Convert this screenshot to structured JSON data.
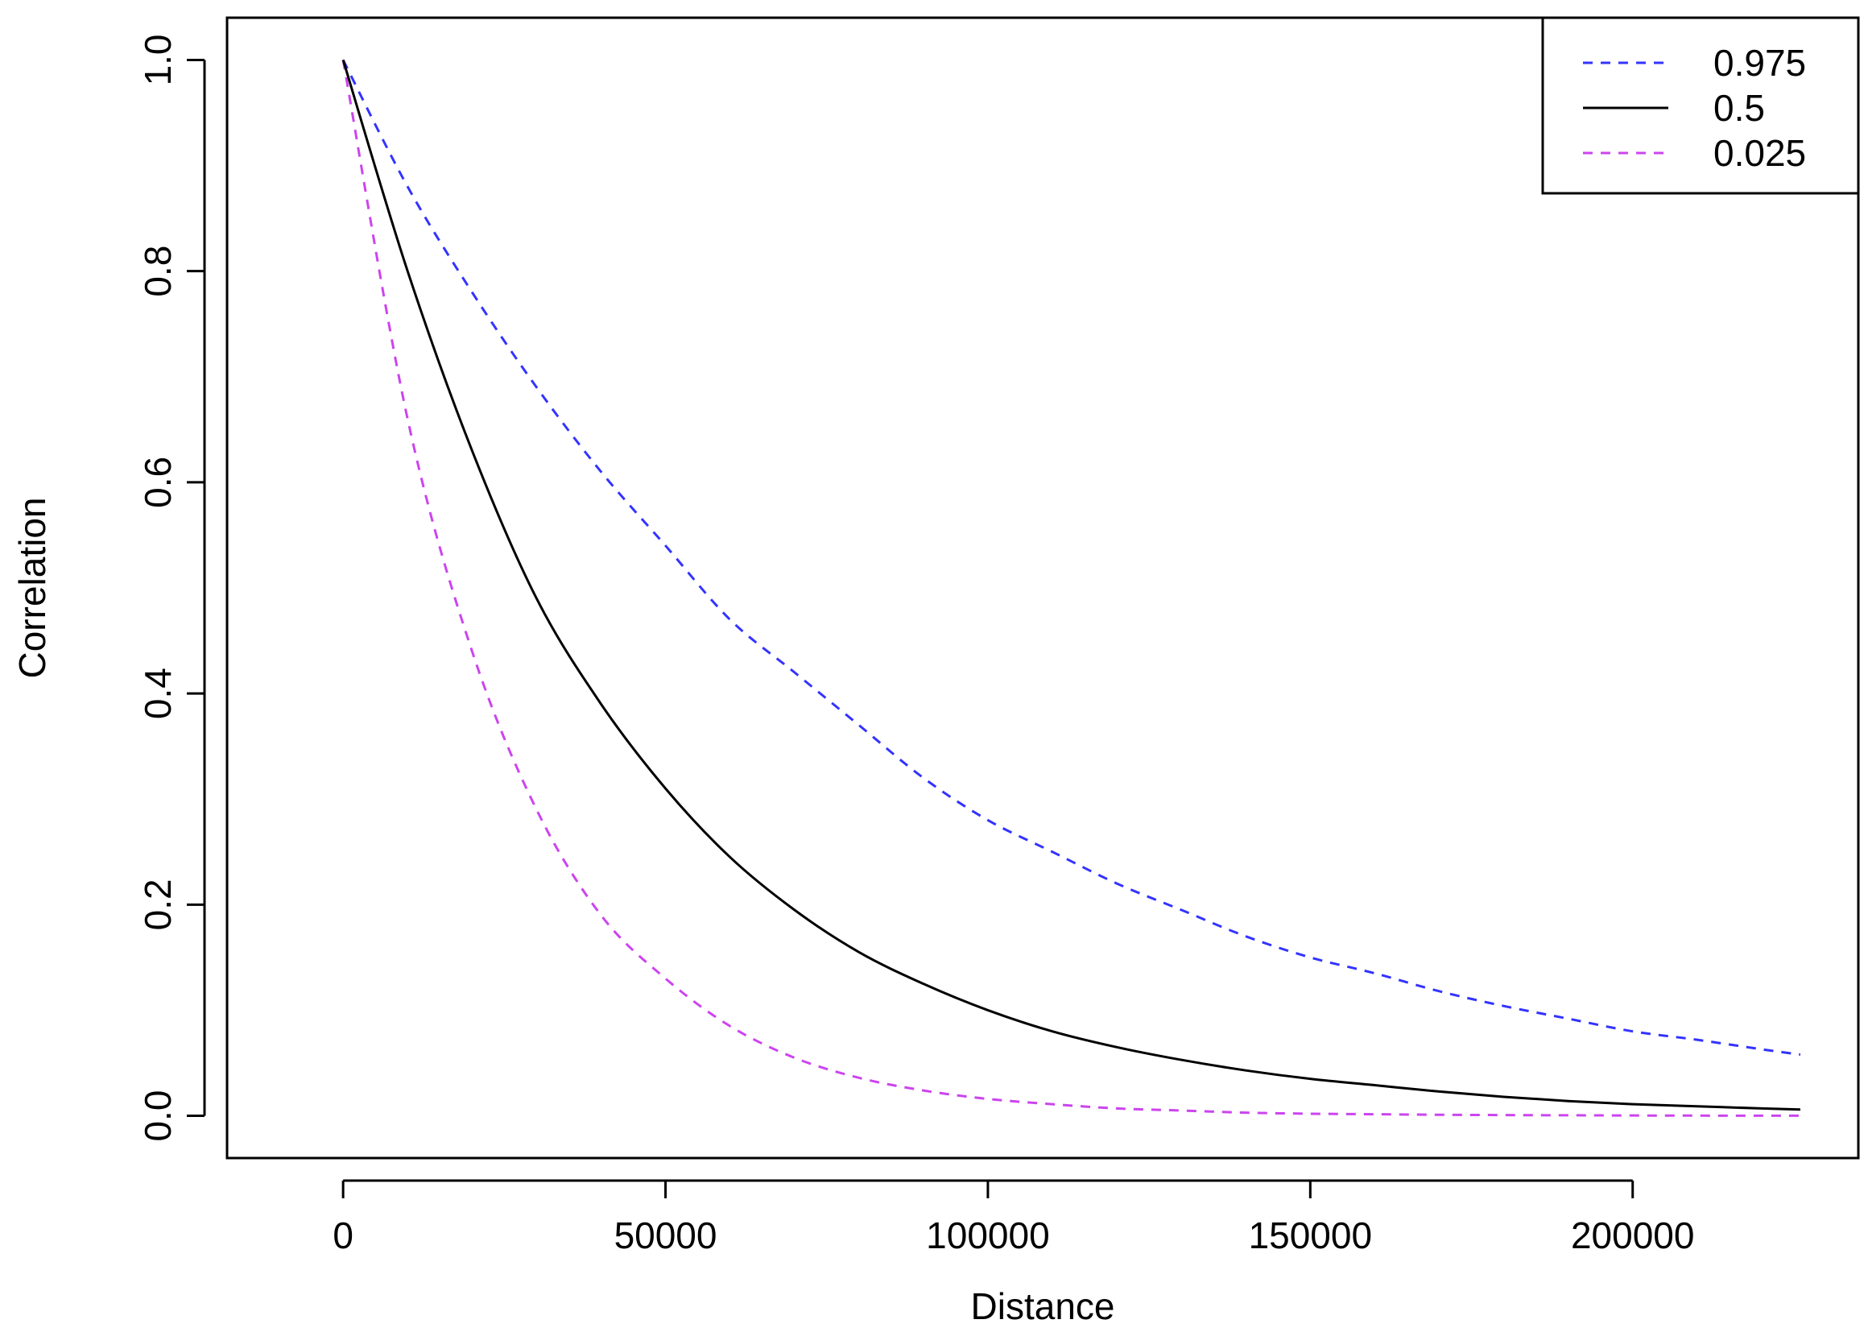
{
  "chart_data": {
    "type": "line",
    "title": "",
    "xlabel": "Distance",
    "ylabel": "Correlation",
    "xlim": [
      -18000,
      235000
    ],
    "ylim": [
      -0.04,
      1.04
    ],
    "x_ticks": [
      0,
      50000,
      100000,
      150000,
      200000
    ],
    "x_tick_labels": [
      "0",
      "50000",
      "100000",
      "150000",
      "200000"
    ],
    "y_ticks": [
      0.0,
      0.2,
      0.4,
      0.6,
      0.8,
      1.0
    ],
    "y_tick_labels": [
      "0.0",
      "0.2",
      "0.4",
      "0.6",
      "0.8",
      "1.0"
    ],
    "grid": false,
    "legend_position": "top-right",
    "x": [
      0,
      10000,
      20000,
      30000,
      40000,
      50000,
      60000,
      70000,
      80000,
      90000,
      100000,
      110000,
      120000,
      130000,
      140000,
      150000,
      160000,
      170000,
      180000,
      190000,
      200000,
      210000,
      220000,
      226000
    ],
    "series": [
      {
        "name": "0.975",
        "color": "#3333ff",
        "dash": "dashed",
        "values": [
          1.0,
          0.88,
          0.78,
          0.69,
          0.61,
          0.54,
          0.47,
          0.42,
          0.37,
          0.32,
          0.28,
          0.25,
          0.22,
          0.195,
          0.17,
          0.15,
          0.135,
          0.118,
          0.104,
          0.092,
          0.08,
          0.072,
          0.063,
          0.058
        ]
      },
      {
        "name": "0.5",
        "color": "#000000",
        "dash": "solid",
        "values": [
          1.0,
          0.8,
          0.63,
          0.49,
          0.39,
          0.31,
          0.245,
          0.195,
          0.155,
          0.125,
          0.1,
          0.08,
          0.065,
          0.053,
          0.043,
          0.035,
          0.029,
          0.023,
          0.018,
          0.014,
          0.011,
          0.009,
          0.007,
          0.006
        ]
      },
      {
        "name": "0.025",
        "color": "#cc44ee",
        "dash": "dashed",
        "values": [
          1.0,
          0.66,
          0.44,
          0.29,
          0.19,
          0.13,
          0.085,
          0.055,
          0.036,
          0.024,
          0.016,
          0.011,
          0.007,
          0.005,
          0.003,
          0.002,
          0.0015,
          0.001,
          0.0007,
          0.0005,
          0.0003,
          0.0002,
          0.0001,
          0.0001
        ]
      }
    ]
  }
}
